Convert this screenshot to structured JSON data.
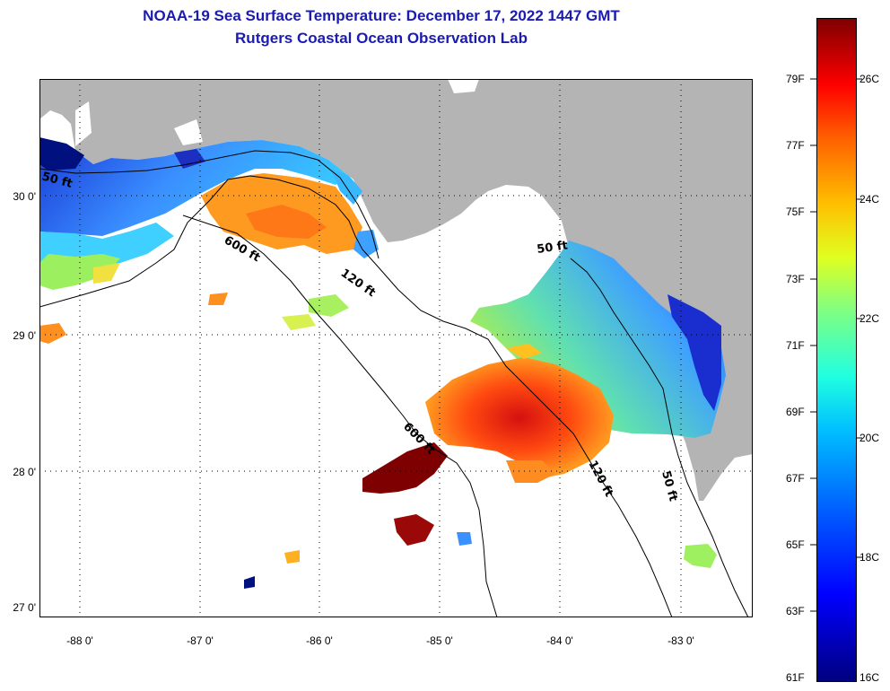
{
  "title": {
    "line1": "NOAA-19 Sea Surface Temperature:  December 17, 2022 1447 GMT",
    "line2": "Rutgers Coastal Ocean Observation Lab"
  },
  "axes": {
    "lat_labels": [
      "30 0'",
      "29 0'",
      "28 0'",
      "27 0'"
    ],
    "lon_labels": [
      "-88 0'",
      "-87 0'",
      "-86 0'",
      "-85 0'",
      "-84 0'",
      "-83 0'"
    ]
  },
  "contours": {
    "labels": [
      "50 ft",
      "600 ft",
      "120 ft",
      "600 ft",
      "50 ft",
      "120 ft",
      "50 ft"
    ]
  },
  "colorbar": {
    "fahrenheit": [
      "79F",
      "77F",
      "75F",
      "73F",
      "71F",
      "69F",
      "67F",
      "65F",
      "63F",
      "61F"
    ],
    "celsius": [
      "26C",
      "24C",
      "22C",
      "20C",
      "18C",
      "16C"
    ]
  },
  "colors": {
    "title": "#1b1bb0",
    "land": "#b4b4b4",
    "no_data": "#ffffff",
    "cold": "#00007f",
    "warm": "#7f0000"
  }
}
